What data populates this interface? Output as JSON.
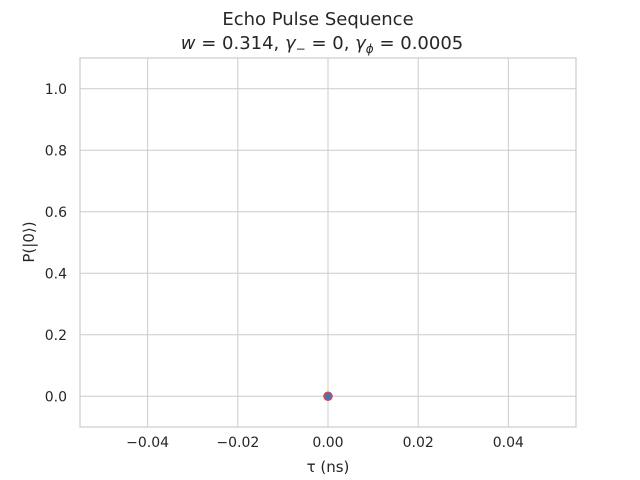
{
  "chart_data": {
    "type": "scatter",
    "title": "Echo Pulse Sequence",
    "subtitle": {
      "w_sym": "w",
      "w_val": " = 0.314, ",
      "g1_sym": "γ",
      "g1_sub": "−",
      "g1_val": " = 0, ",
      "g2_sym": "γ",
      "g2_sub": "ϕ",
      "g2_val": " = 0.0005"
    },
    "xlabel": "τ (ns)",
    "ylabel": "P(|0⟩)",
    "xlim": [
      -0.055,
      0.055
    ],
    "ylim": [
      -0.1,
      1.1
    ],
    "xticks": [
      -0.04,
      -0.02,
      0.0,
      0.02,
      0.04
    ],
    "xtick_labels": [
      "−0.04",
      "−0.02",
      "0.00",
      "0.02",
      "0.04"
    ],
    "yticks": [
      0.0,
      0.2,
      0.4,
      0.6,
      0.8,
      1.0
    ],
    "ytick_labels": [
      "0.0",
      "0.2",
      "0.4",
      "0.6",
      "0.8",
      "1.0"
    ],
    "grid": true,
    "series": [
      {
        "x": [
          0.0
        ],
        "y": [
          0.0
        ],
        "color": "#4c72b0",
        "edgecolor": "#c44e52"
      }
    ]
  }
}
